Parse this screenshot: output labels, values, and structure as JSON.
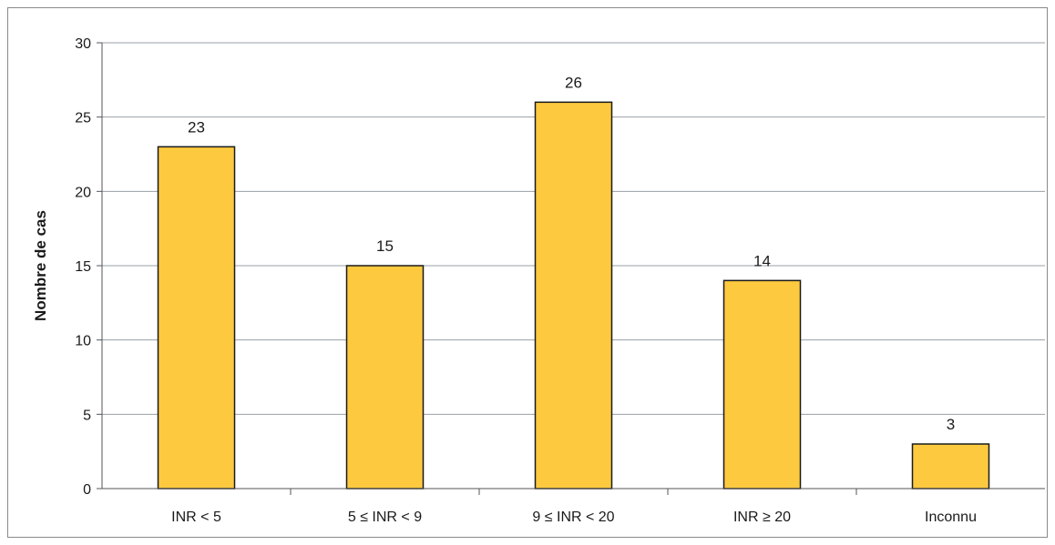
{
  "chart_data": {
    "type": "bar",
    "title": "",
    "xlabel": "",
    "ylabel": "Nombre de cas",
    "categories": [
      "INR < 5",
      "5 ≤ INR < 9",
      "9 ≤ INR < 20",
      "INR ≥ 20",
      "Inconnu"
    ],
    "values": [
      23,
      15,
      26,
      14,
      3
    ],
    "data_labels": [
      "23",
      "15",
      "26",
      "14",
      "3"
    ],
    "ylim": [
      0,
      30
    ],
    "yticks": [
      "0",
      "5",
      "10",
      "15",
      "20",
      "25",
      "30"
    ],
    "grid": true,
    "legend": "none",
    "colors": {
      "bar_fill": "#fdc93f",
      "bar_stroke": "#1a1a1a",
      "gridline": "#9aa0a8",
      "axis": "#555555"
    }
  }
}
